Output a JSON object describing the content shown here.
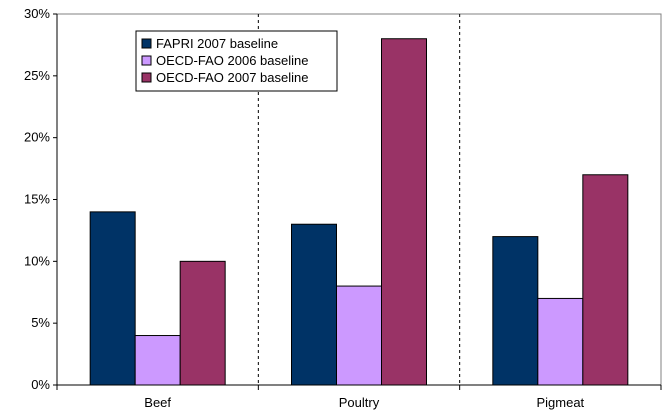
{
  "chart_data": {
    "type": "bar",
    "title": "",
    "xlabel": "",
    "ylabel": "",
    "categories": [
      "Beef",
      "Poultry",
      "Pigmeat"
    ],
    "series": [
      {
        "name": "FAPRI 2007 baseline",
        "color": "#003366",
        "values": [
          14,
          13,
          12
        ]
      },
      {
        "name": "OECD-FAO 2006 baseline",
        "color": "#cc99ff",
        "values": [
          4,
          8,
          7
        ]
      },
      {
        "name": "OECD-FAO 2007 baseline",
        "color": "#993366",
        "values": [
          10,
          28,
          17
        ]
      }
    ],
    "ylim": [
      0,
      30
    ],
    "yticks": [
      0,
      5,
      10,
      15,
      20,
      25,
      30
    ],
    "ytick_labels": [
      "0%",
      "5%",
      "10%",
      "15%",
      "20%",
      "25%",
      "30%"
    ],
    "grid": "vertical dashed category separators",
    "legend_position": "top-left"
  }
}
